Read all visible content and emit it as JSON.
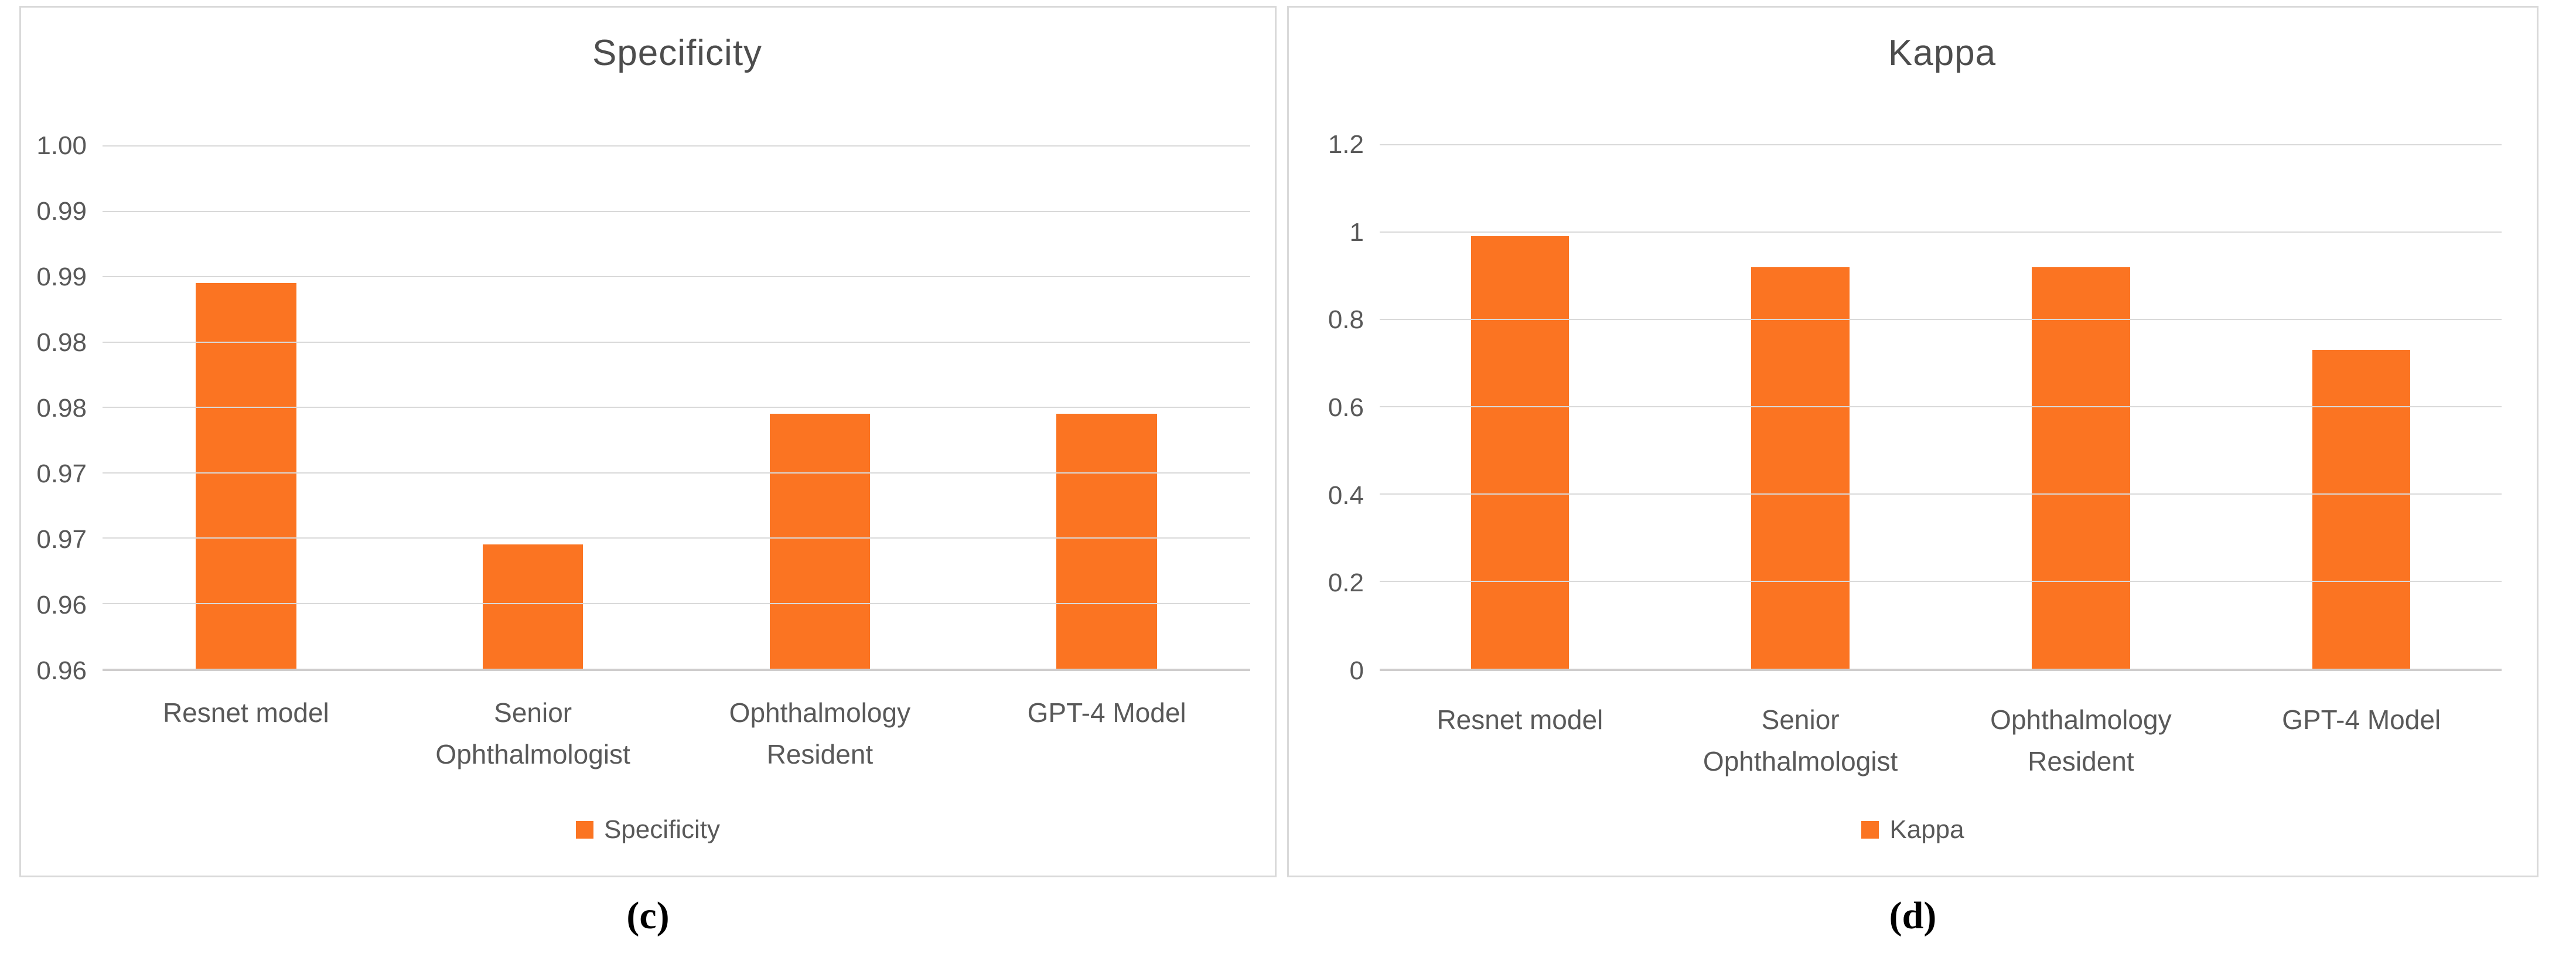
{
  "figure": {
    "captions": [
      "(c)",
      "(d)"
    ],
    "colors": {
      "bar": "#FB7422",
      "gridline": "#D9D9D9",
      "axis_line": "#CFCDCD",
      "text": "#595959",
      "title": "#4D4D4D",
      "border": "#D9D9D9",
      "caption": "#000000",
      "background": "#FFFFFF"
    }
  },
  "chart_data": [
    {
      "type": "bar",
      "title": "Specificity",
      "categories": [
        "Resnet model",
        "Senior Ophthalmologist",
        "Ophthalmology Resident",
        "GPT-4 Model"
      ],
      "values": [
        0.9895,
        0.9695,
        0.9795,
        0.9795
      ],
      "xlabel": "",
      "ylabel": "",
      "ylim": [
        0.96,
        1.0
      ],
      "ytick_values": [
        0.96,
        0.965,
        0.97,
        0.975,
        0.98,
        0.985,
        0.99,
        0.995,
        1.0
      ],
      "ytick_labels": [
        "0.96",
        "0.96",
        "0.97",
        "0.97",
        "0.98",
        "0.98",
        "0.99",
        "0.99",
        "1.00"
      ],
      "grid": true,
      "legend_label": "Specificity",
      "legend_position": "bottom"
    },
    {
      "type": "bar",
      "title": "Kappa",
      "categories": [
        "Resnet model",
        "Senior Ophthalmologist",
        "Ophthalmology Resident",
        "GPT-4 Model"
      ],
      "values": [
        0.99,
        0.92,
        0.92,
        0.73
      ],
      "xlabel": "",
      "ylabel": "",
      "ylim": [
        0,
        1.2
      ],
      "ytick_values": [
        0,
        0.2,
        0.4,
        0.6,
        0.8,
        1.0,
        1.2
      ],
      "ytick_labels": [
        "0",
        "0.2",
        "0.4",
        "0.6",
        "0.8",
        "1",
        "1.2"
      ],
      "grid": true,
      "legend_label": "Kappa",
      "legend_position": "bottom"
    }
  ]
}
